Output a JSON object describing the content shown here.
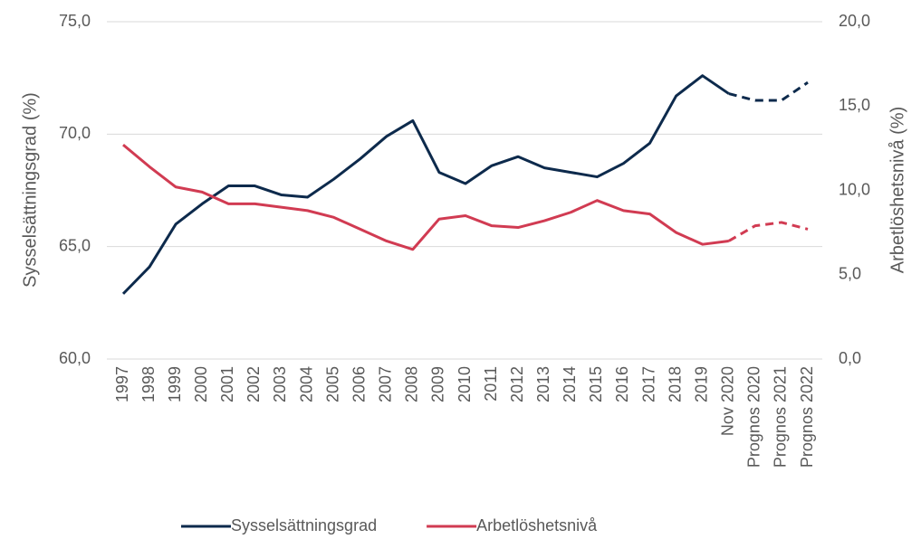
{
  "chart_data": {
    "type": "line",
    "categories": [
      "1997",
      "1998",
      "1999",
      "2000",
      "2001",
      "2002",
      "2003",
      "2004",
      "2005",
      "2006",
      "2007",
      "2008",
      "2009",
      "2010",
      "2011",
      "2012",
      "2013",
      "2014",
      "2015",
      "2016",
      "2017",
      "2018",
      "2019",
      "Nov 2020",
      "Prognos 2020",
      "Prognos 2021",
      "Prognos 2022"
    ],
    "series": [
      {
        "name": "Sysselsättningsgrad",
        "color": "#0d2a4c",
        "axis": "y",
        "values": [
          62.9,
          64.1,
          66.0,
          66.9,
          67.7,
          67.7,
          67.3,
          67.2,
          68.0,
          68.9,
          69.9,
          70.6,
          68.3,
          67.8,
          68.6,
          69.0,
          68.5,
          68.3,
          68.1,
          68.7,
          69.6,
          71.7,
          72.6,
          71.8,
          71.5,
          71.5,
          72.3
        ]
      },
      {
        "name": "Arbetlöshetsnivå",
        "color": "#d13b52",
        "axis": "y2",
        "values": [
          12.7,
          11.4,
          10.2,
          9.9,
          9.2,
          9.2,
          9.0,
          8.8,
          8.4,
          7.7,
          7.0,
          6.5,
          8.3,
          8.5,
          7.9,
          7.8,
          8.2,
          8.7,
          9.4,
          8.8,
          8.6,
          7.5,
          6.8,
          7.0,
          7.9,
          8.1,
          7.7
        ]
      }
    ],
    "dashed_from_category": "Nov 2020",
    "ylabel": "Sysselsättningsgrad (%)",
    "y2label": "Arbetlöshetsnivå (%)",
    "ylim": [
      60,
      75
    ],
    "yticks": [
      {
        "value": 60,
        "label": "60,0"
      },
      {
        "value": 65,
        "label": "65,0"
      },
      {
        "value": 70,
        "label": "70,0"
      },
      {
        "value": 75,
        "label": "75,0"
      }
    ],
    "y2lim": [
      0,
      20
    ],
    "y2ticks": [
      {
        "value": 0,
        "label": "0,0"
      },
      {
        "value": 5,
        "label": "5,0"
      },
      {
        "value": 10,
        "label": "10,0"
      },
      {
        "value": 15,
        "label": "15,0"
      },
      {
        "value": 20,
        "label": "20,0"
      }
    ],
    "grid": true,
    "legend": "bottom"
  }
}
